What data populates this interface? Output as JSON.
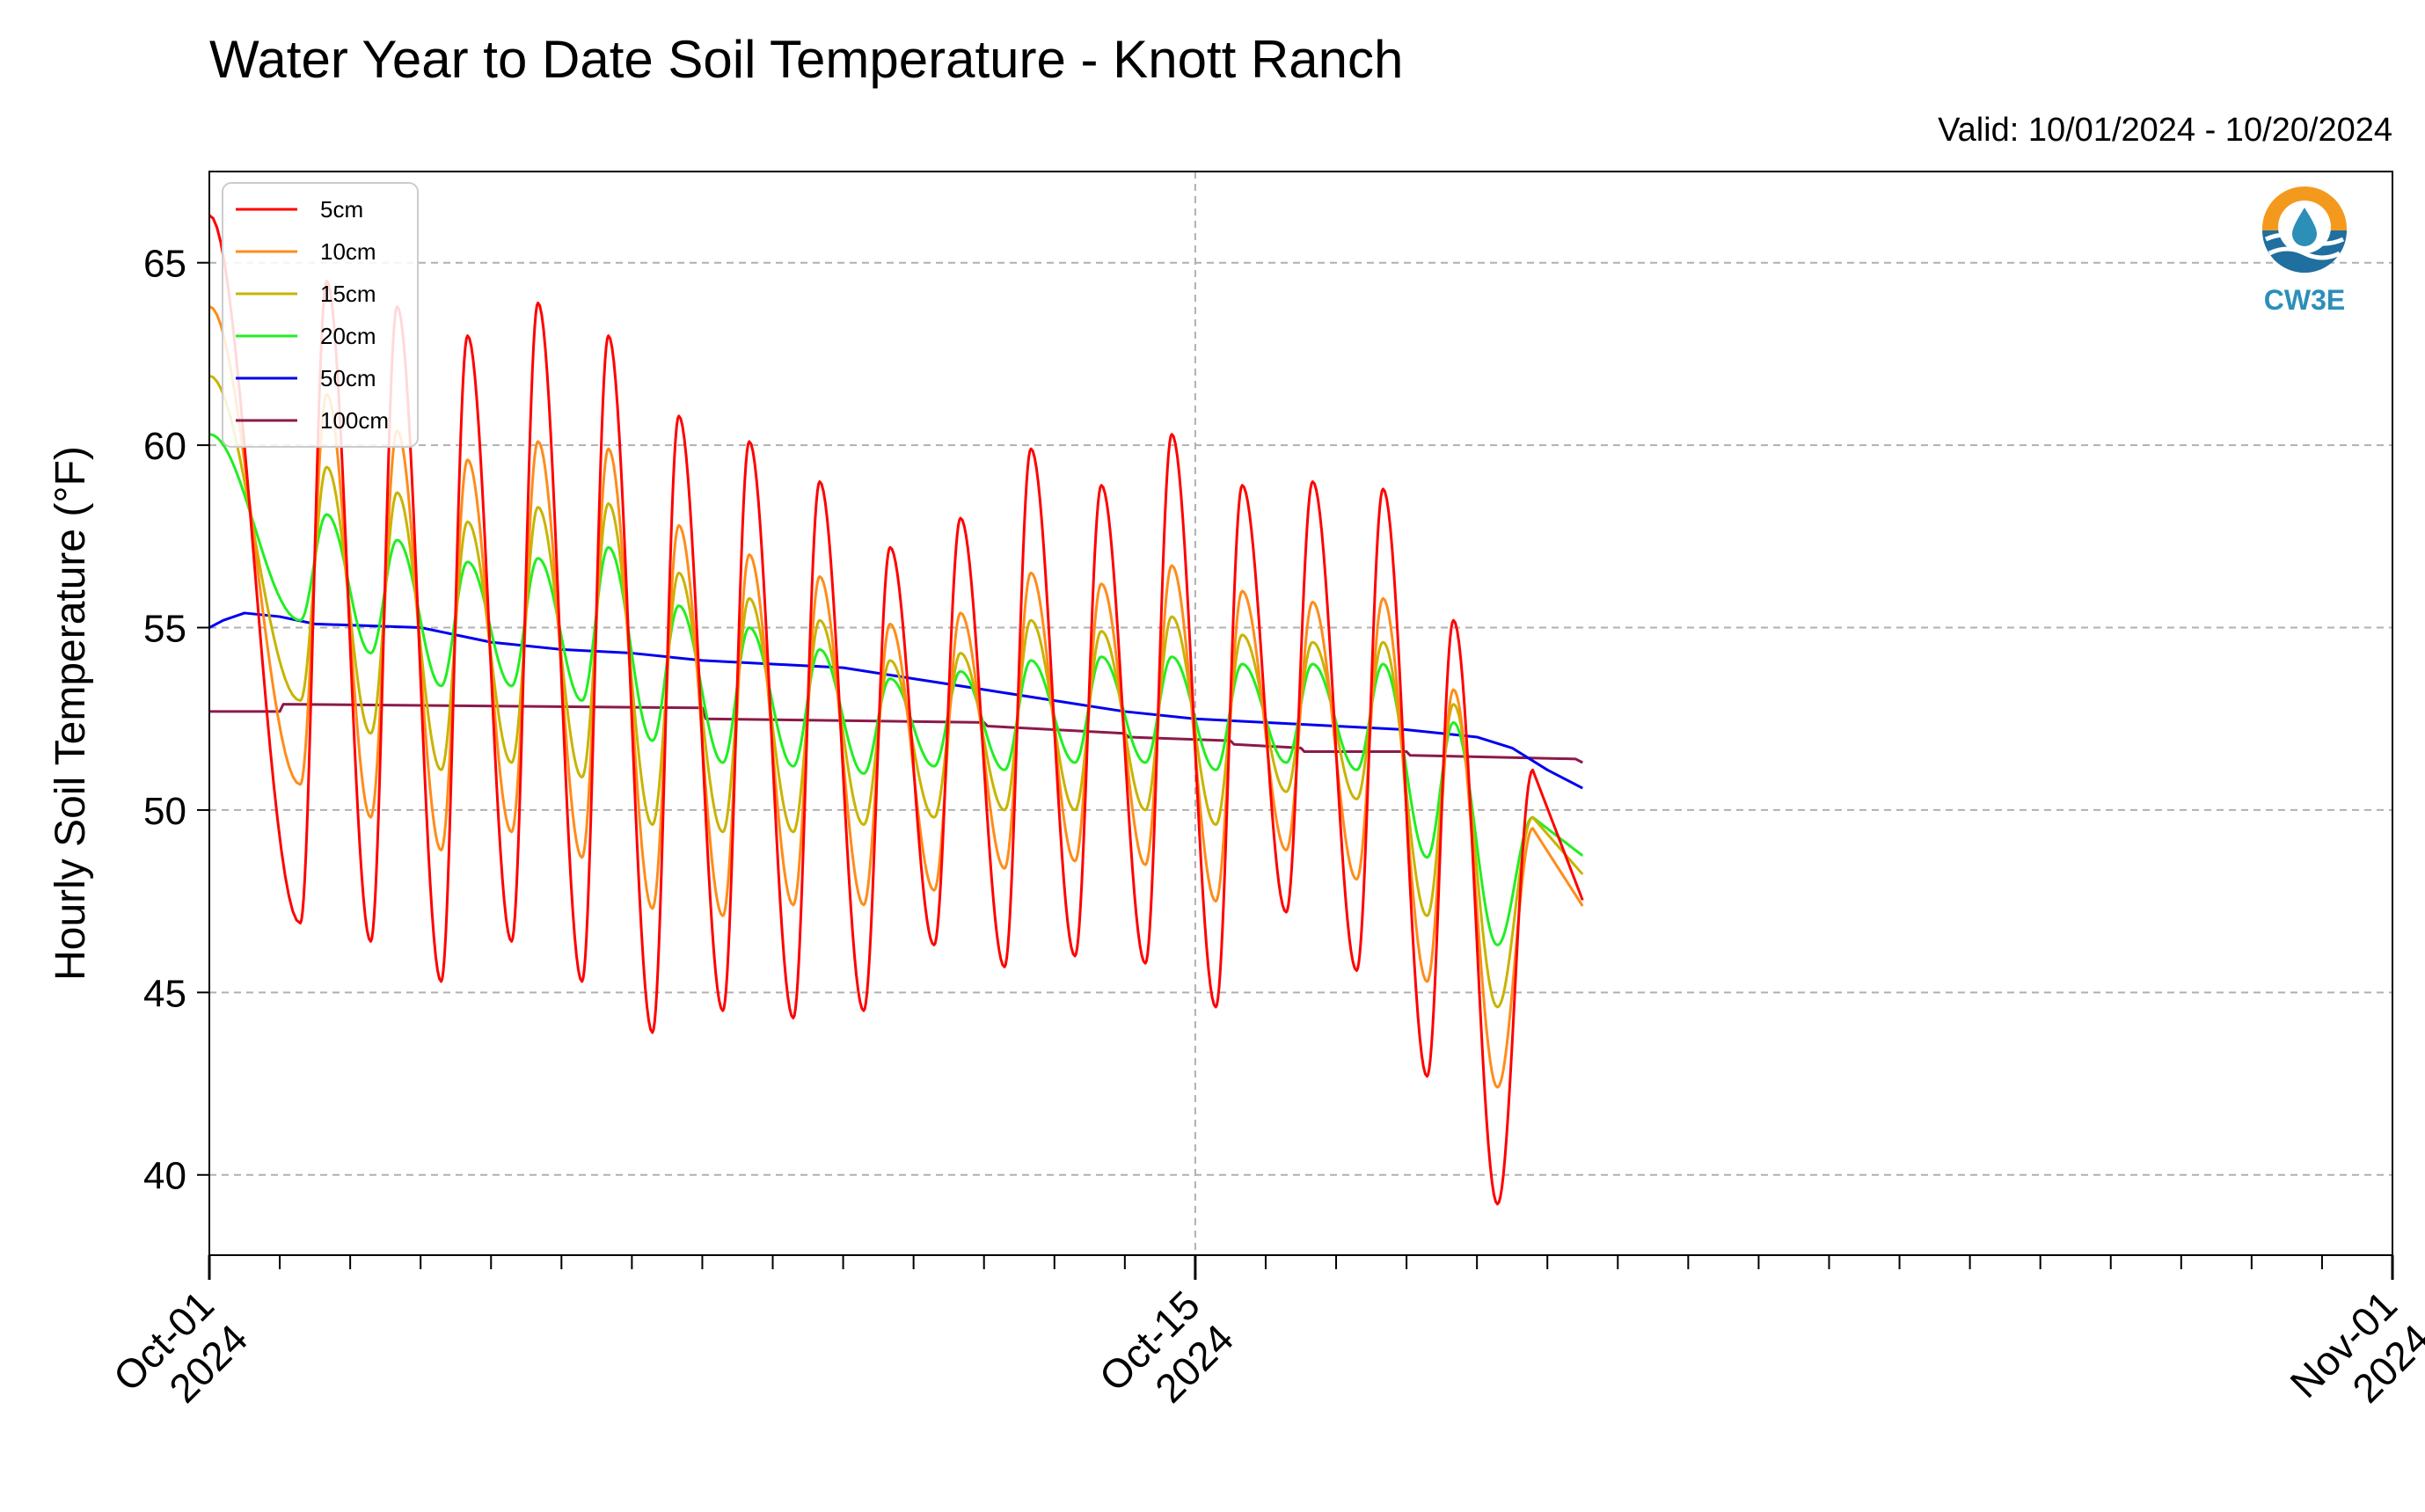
{
  "chart_data": {
    "type": "line",
    "title": "Water Year to Date Soil Temperature - Knott Ranch",
    "valid_text": "Valid: 10/01/2024 - 10/20/2024",
    "ylabel": "Hourly Soil Temperature (°F)",
    "xlabel": "",
    "x_range": [
      "2024-10-01",
      "2024-11-01"
    ],
    "ylim": [
      37.8,
      67.5
    ],
    "y_ticks": [
      40,
      45,
      50,
      55,
      60,
      65
    ],
    "x_tick_labels": [
      {
        "date": "2024-10-01",
        "line1": "Oct-01",
        "line2": "2024"
      },
      {
        "date": "2024-10-15",
        "line1": "Oct-15",
        "line2": "2024"
      },
      {
        "date": "2024-11-01",
        "line1": "Nov-01",
        "line2": "2024"
      }
    ],
    "grid": true,
    "legend_position": "upper-left",
    "logo_text": "CW3E",
    "series": [
      {
        "name": "5cm",
        "color": "#ff0000",
        "mins": [
          46.9,
          46.4,
          45.3,
          46.4,
          45.3,
          43.9,
          44.5,
          44.3,
          44.5,
          46.3,
          45.7,
          46.0,
          45.8,
          44.6,
          47.2,
          45.6,
          42.7,
          39.2
        ],
        "maxs": [
          66.3,
          64.5,
          63.8,
          63.0,
          63.9,
          63.0,
          60.8,
          60.1,
          59.0,
          57.2,
          58.0,
          59.9,
          58.9,
          60.3,
          58.9,
          59.0,
          58.8,
          55.2,
          51.1
        ]
      },
      {
        "name": "10cm",
        "color": "#ff8c1a",
        "mins": [
          50.7,
          49.8,
          48.9,
          49.4,
          48.7,
          47.3,
          47.1,
          47.4,
          47.4,
          47.8,
          48.4,
          48.6,
          48.5,
          47.5,
          48.9,
          48.1,
          45.3,
          42.4
        ],
        "maxs": [
          63.8,
          61.4,
          60.4,
          59.6,
          60.1,
          59.9,
          57.8,
          57.0,
          56.4,
          55.1,
          55.4,
          56.5,
          56.2,
          56.7,
          56.0,
          55.7,
          55.8,
          53.3,
          49.5
        ]
      },
      {
        "name": "15cm",
        "color": "#c8b400",
        "mins": [
          53.0,
          52.1,
          51.1,
          51.3,
          50.9,
          49.6,
          49.4,
          49.4,
          49.6,
          49.8,
          50.0,
          50.0,
          50.0,
          49.6,
          50.5,
          50.3,
          47.1,
          44.6
        ],
        "maxs": [
          61.9,
          59.4,
          58.7,
          57.9,
          58.3,
          58.4,
          56.5,
          55.8,
          55.2,
          54.1,
          54.3,
          55.2,
          54.9,
          55.3,
          54.8,
          54.6,
          54.6,
          52.9,
          49.8
        ]
      },
      {
        "name": "20cm",
        "color": "#22ee22",
        "mins": [
          55.2,
          54.3,
          53.4,
          53.4,
          53.0,
          51.9,
          51.3,
          51.2,
          51.0,
          51.2,
          51.1,
          51.3,
          51.3,
          51.1,
          51.3,
          51.1,
          48.7,
          46.3
        ],
        "maxs": [
          60.3,
          58.1,
          57.4,
          56.8,
          56.9,
          57.2,
          55.6,
          55.0,
          54.4,
          53.6,
          53.8,
          54.1,
          54.2,
          54.2,
          54.0,
          54.0,
          54.0,
          52.4,
          49.8
        ]
      },
      {
        "name": "50cm",
        "color": "#0000ee",
        "points": [
          [
            0.0,
            55.0
          ],
          [
            0.2,
            55.2
          ],
          [
            0.5,
            55.4
          ],
          [
            1.0,
            55.3
          ],
          [
            1.5,
            55.1
          ],
          [
            3.0,
            55.0
          ],
          [
            4.0,
            54.6
          ],
          [
            5.0,
            54.4
          ],
          [
            6.0,
            54.3
          ],
          [
            7.0,
            54.1
          ],
          [
            8.0,
            54.0
          ],
          [
            9.0,
            53.9
          ],
          [
            10.0,
            53.6
          ],
          [
            11.0,
            53.3
          ],
          [
            12.0,
            53.0
          ],
          [
            13.0,
            52.7
          ],
          [
            14.0,
            52.5
          ],
          [
            15.0,
            52.4
          ],
          [
            16.0,
            52.3
          ],
          [
            17.0,
            52.2
          ],
          [
            18.0,
            52.0
          ],
          [
            18.5,
            51.7
          ],
          [
            19.0,
            51.1
          ],
          [
            19.5,
            50.6
          ]
        ]
      },
      {
        "name": "100cm",
        "color": "#8b1a4a",
        "points": [
          [
            0.0,
            52.7
          ],
          [
            1.0,
            52.7
          ],
          [
            1.05,
            52.9
          ],
          [
            7.0,
            52.8
          ],
          [
            7.05,
            52.5
          ],
          [
            11.0,
            52.4
          ],
          [
            11.05,
            52.3
          ],
          [
            13.0,
            52.1
          ],
          [
            13.05,
            52.0
          ],
          [
            14.5,
            51.9
          ],
          [
            14.55,
            51.8
          ],
          [
            15.5,
            51.7
          ],
          [
            15.55,
            51.6
          ],
          [
            17.0,
            51.6
          ],
          [
            17.05,
            51.5
          ],
          [
            19.4,
            51.4
          ],
          [
            19.5,
            51.3
          ]
        ]
      }
    ]
  }
}
